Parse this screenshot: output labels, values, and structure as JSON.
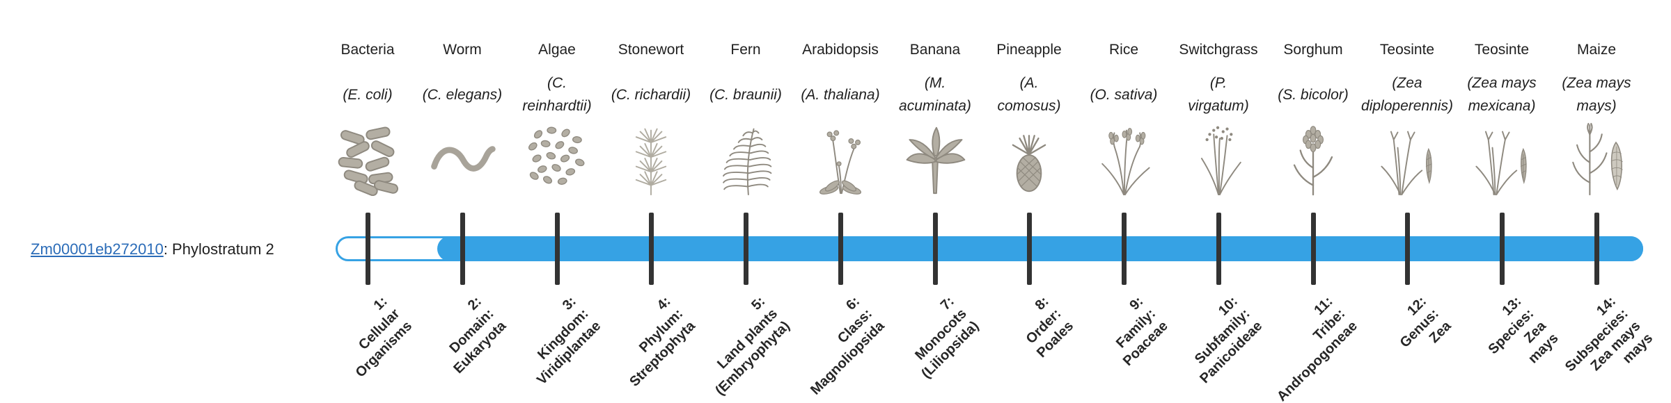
{
  "gene": {
    "id_link": "Zm00001eb272010",
    "suffix": ": Phylostratum 2",
    "phylostratum": 2
  },
  "colors": {
    "bar_fill": "#36a2e4",
    "bar_track": "#ffffff",
    "link": "#2b6cb8",
    "tick": "#333333"
  },
  "taxa": [
    {
      "common": "Bacteria",
      "sci_lines": [
        "(E. coli)"
      ],
      "icon": "bacteria-icon",
      "tick_lines": [
        "1:",
        "Cellular",
        "Organisms"
      ]
    },
    {
      "common": "Worm",
      "sci_lines": [
        "(C. elegans)"
      ],
      "icon": "worm-icon",
      "tick_lines": [
        "2:",
        "Domain:",
        "Eukaryota"
      ]
    },
    {
      "common": "Algae",
      "sci_lines": [
        "(C.",
        "reinhardtii)"
      ],
      "icon": "algae-icon",
      "tick_lines": [
        "3:",
        "Kingdom:",
        "Viridiplantae"
      ]
    },
    {
      "common": "Stonewort",
      "sci_lines": [
        "(C. richardii)"
      ],
      "icon": "stonewort-icon",
      "tick_lines": [
        "4:",
        "Phylum:",
        "Streptophyta"
      ]
    },
    {
      "common": "Fern",
      "sci_lines": [
        "(C. braunii)"
      ],
      "icon": "fern-icon",
      "tick_lines": [
        "5:",
        "Land plants",
        "(Embryophyta)"
      ]
    },
    {
      "common": "Arabidopsis",
      "sci_lines": [
        "(A. thaliana)"
      ],
      "icon": "arabidopsis-icon",
      "tick_lines": [
        "6:",
        "Class:",
        "Magnoliopsida"
      ]
    },
    {
      "common": "Banana",
      "sci_lines": [
        "(M.",
        "acuminata)"
      ],
      "icon": "banana-icon",
      "tick_lines": [
        "7:",
        "Monocots",
        "(Liliopsida)"
      ]
    },
    {
      "common": "Pineapple",
      "sci_lines": [
        "(A.",
        "comosus)"
      ],
      "icon": "pineapple-icon",
      "tick_lines": [
        "8:",
        "Order:",
        "Poales"
      ]
    },
    {
      "common": "Rice",
      "sci_lines": [
        "(O. sativa)"
      ],
      "icon": "rice-icon",
      "tick_lines": [
        "9:",
        "Family:",
        "Poaceae"
      ]
    },
    {
      "common": "Switchgrass",
      "sci_lines": [
        "(P.",
        "virgatum)"
      ],
      "icon": "switchgrass-icon",
      "tick_lines": [
        "10:",
        "Subfamily:",
        "Panicoideae"
      ]
    },
    {
      "common": "Sorghum",
      "sci_lines": [
        "(S. bicolor)"
      ],
      "icon": "sorghum-icon",
      "tick_lines": [
        "11:",
        "Tribe:",
        "Andropogoneae"
      ]
    },
    {
      "common": "Teosinte",
      "sci_lines": [
        "(Zea",
        "diploperennis)"
      ],
      "icon": "teosinte-icon",
      "tick_lines": [
        "12:",
        "Genus:",
        "Zea"
      ]
    },
    {
      "common": "Teosinte",
      "sci_lines": [
        "(Zea mays",
        "mexicana)"
      ],
      "icon": "teosinte-icon",
      "tick_lines": [
        "13:",
        "Species:",
        "Zea",
        "mays"
      ]
    },
    {
      "common": "Maize",
      "sci_lines": [
        "(Zea mays",
        "mays)"
      ],
      "icon": "maize-icon",
      "tick_lines": [
        "14:",
        "Subspecies:",
        "Zea mays",
        "mays"
      ]
    }
  ]
}
